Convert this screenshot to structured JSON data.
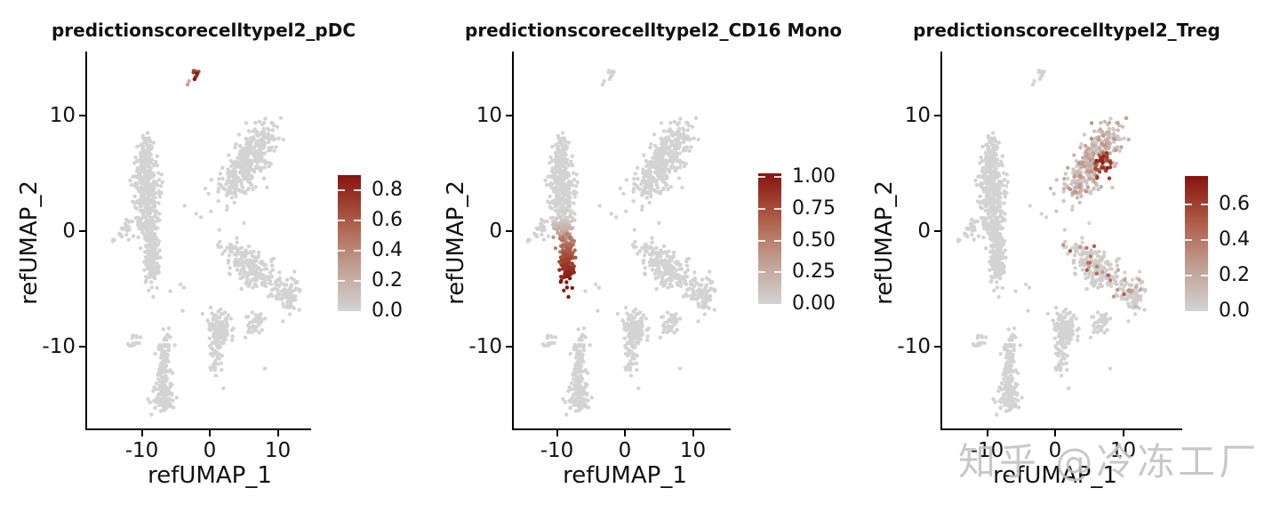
{
  "figure": {
    "background": "#ffffff",
    "watermark": {
      "text": "知乎 @冷冻工厂",
      "color": "#c3c3c3"
    }
  },
  "chart_data": {
    "type": "scatter",
    "description": "Three UMAP feature plots (Seurat reference-mapping prediction scores) sharing one embedding; points colored lightgrey (score 0) to dark red (max score).",
    "colormap": {
      "stops": [
        [
          0,
          "#d3d3d3"
        ],
        [
          0.35,
          "#c09b8e"
        ],
        [
          0.65,
          "#ae5e49"
        ],
        [
          1,
          "#87130e"
        ]
      ]
    },
    "shared_axes": {
      "xlabel": "refUMAP_1",
      "ylabel": "refUMAP_2",
      "x_ticks": [
        -10,
        0,
        10
      ],
      "y_ticks": [
        10,
        0,
        -10
      ],
      "x_tick_labels": [
        "-10",
        "0",
        "10"
      ],
      "y_tick_labels": [
        "10",
        "0",
        "-10"
      ],
      "xlim": [
        -18,
        15
      ],
      "ylim": [
        -17,
        15.7
      ],
      "grid": false
    },
    "clusters": [
      {
        "id": "pdc_main",
        "cx": -2.2,
        "cy": 13.6,
        "sx": 0.3,
        "sy": 0.32,
        "rot": 0,
        "n": 9
      },
      {
        "id": "pdc_side",
        "cx": -3.1,
        "cy": 12.9,
        "sx": 0.15,
        "sy": 0.12,
        "rot": 0,
        "n": 2
      },
      {
        "id": "left_stub",
        "cx": -9.4,
        "cy": 6.9,
        "sx": 0.55,
        "sy": 0.65,
        "rot": 0,
        "n": 45
      },
      {
        "id": "left_top",
        "cx": -9.3,
        "cy": 4.0,
        "sx": 1.0,
        "sy": 1.55,
        "rot": 0,
        "n": 270
      },
      {
        "id": "left_neck",
        "cx": -8.9,
        "cy": 0.8,
        "sx": 0.7,
        "sy": 1.0,
        "rot": 0,
        "n": 110
      },
      {
        "id": "mono",
        "cx": -8.55,
        "cy": -2.6,
        "sx": 0.5,
        "sy": 1.05,
        "rot": 0,
        "n": 150
      },
      {
        "id": "left_small",
        "cx": -12.4,
        "cy": 0.2,
        "sx": 0.85,
        "sy": 0.35,
        "rot": 25,
        "n": 22
      },
      {
        "id": "left_dot",
        "cx": -14.3,
        "cy": -0.8,
        "sx": 0.15,
        "sy": 0.12,
        "rot": 0,
        "n": 2
      },
      {
        "id": "cd4",
        "cx": 5.9,
        "cy": 6.3,
        "sx": 2.3,
        "sy": 1.05,
        "rot": 35,
        "n": 340
      },
      {
        "id": "cd4_tail",
        "cx": 3.4,
        "cy": 4.1,
        "sx": 0.55,
        "sy": 0.5,
        "rot": 0,
        "n": 28
      },
      {
        "id": "band",
        "cx": 6.2,
        "cy": -3.2,
        "sx": 2.5,
        "sy": 0.75,
        "rot": -22,
        "n": 215
      },
      {
        "id": "band_blob",
        "cx": 11.4,
        "cy": -5.3,
        "sx": 0.95,
        "sy": 0.8,
        "rot": -20,
        "n": 85
      },
      {
        "id": "b_blob",
        "cx": 1.5,
        "cy": -8.5,
        "sx": 0.95,
        "sy": 0.8,
        "rot": 0,
        "n": 125
      },
      {
        "id": "b_tail",
        "cx": 0.9,
        "cy": -10.9,
        "sx": 0.55,
        "sy": 1.1,
        "rot": 0,
        "n": 32
      },
      {
        "id": "right_small",
        "cx": 6.9,
        "cy": -7.9,
        "sx": 0.65,
        "sy": 0.55,
        "rot": 20,
        "n": 45
      },
      {
        "id": "bottom_band",
        "cx": -6.7,
        "cy": -12.0,
        "sx": 0.5,
        "sy": 1.5,
        "rot": 0,
        "n": 115
      },
      {
        "id": "bottom_blob",
        "cx": -7.0,
        "cy": -14.4,
        "sx": 0.85,
        "sy": 0.55,
        "rot": 0,
        "n": 65
      },
      {
        "id": "bl_small",
        "cx": -11.3,
        "cy": -9.6,
        "sx": 0.55,
        "sy": 0.28,
        "rot": 15,
        "n": 14
      }
    ],
    "singles": [
      [
        -3.7,
        2.2
      ],
      [
        -2.0,
        1.5
      ],
      [
        -1.3,
        1.2
      ],
      [
        5.0,
        0.7
      ],
      [
        -4.3,
        -4.6
      ],
      [
        -3.8,
        -4.9
      ],
      [
        -4.0,
        -6.9
      ],
      [
        8.1,
        -11.9
      ],
      [
        2.0,
        -13.6
      ],
      [
        -5.8,
        -5.2
      ]
    ],
    "panels": [
      {
        "id": "pdc",
        "title": "predictionscorecelltypel2_pDC",
        "colorbar": {
          "max": 0.9,
          "ticks": [
            {
              "v": 0.8,
              "label": "0.8"
            },
            {
              "v": 0.6,
              "label": "0.6"
            },
            {
              "v": 0.4,
              "label": "0.4"
            },
            {
              "v": 0.2,
              "label": "0.2"
            },
            {
              "v": 0.0,
              "label": "0.0"
            }
          ]
        },
        "score_rules": [
          {
            "cluster": "pdc_main",
            "mode": "uniform",
            "min": 0.6,
            "max": 0.9
          },
          {
            "cluster": "pdc_side",
            "mode": "uniform",
            "min": 0.2,
            "max": 0.35
          }
        ]
      },
      {
        "id": "cd16-mono",
        "title": "predictionscorecelltypel2_CD16 Mono",
        "colorbar": {
          "max": 1.03,
          "ticks": [
            {
              "v": 1.0,
              "label": "1.00"
            },
            {
              "v": 0.75,
              "label": "0.75"
            },
            {
              "v": 0.5,
              "label": "0.50"
            },
            {
              "v": 0.25,
              "label": "0.25"
            },
            {
              "v": 0.0,
              "label": "0.00"
            }
          ]
        },
        "score_rules": [
          {
            "cluster": "left_neck",
            "mode": "grad_y",
            "y_hi": 1.2,
            "y_lo": -1.2,
            "s_hi": 0.0,
            "s_lo": 0.5
          },
          {
            "cluster": "mono",
            "mode": "grad_y",
            "y_hi": -0.8,
            "y_lo": -4.2,
            "s_hi": 0.55,
            "s_lo": 1.0
          }
        ]
      },
      {
        "id": "treg",
        "title": "predictionscorecelltypel2_Treg",
        "colorbar": {
          "max": 0.76,
          "ticks": [
            {
              "v": 0.6,
              "label": "0.6"
            },
            {
              "v": 0.4,
              "label": "0.4"
            },
            {
              "v": 0.2,
              "label": "0.2"
            },
            {
              "v": 0.0,
              "label": "0.0"
            }
          ]
        },
        "score_rules": [
          {
            "cluster": "cd4",
            "mode": "hotspot",
            "hx": 7.2,
            "hy": 5.5,
            "r": 1.4,
            "hot_min": 0.4,
            "hot_max": 0.72,
            "mid_frac": 0.5,
            "mid_min": 0.05,
            "mid_max": 0.3,
            "base_max": 0.08
          },
          {
            "cluster": "cd4_tail",
            "mode": "sparse",
            "frac": 0.25,
            "min": 0.05,
            "max": 0.2
          },
          {
            "cluster": "band",
            "mode": "sparse",
            "frac": 0.1,
            "min": 0.2,
            "max": 0.5
          },
          {
            "cluster": "band_blob",
            "mode": "sparse",
            "frac": 0.08,
            "min": 0.1,
            "max": 0.3
          }
        ]
      }
    ]
  }
}
